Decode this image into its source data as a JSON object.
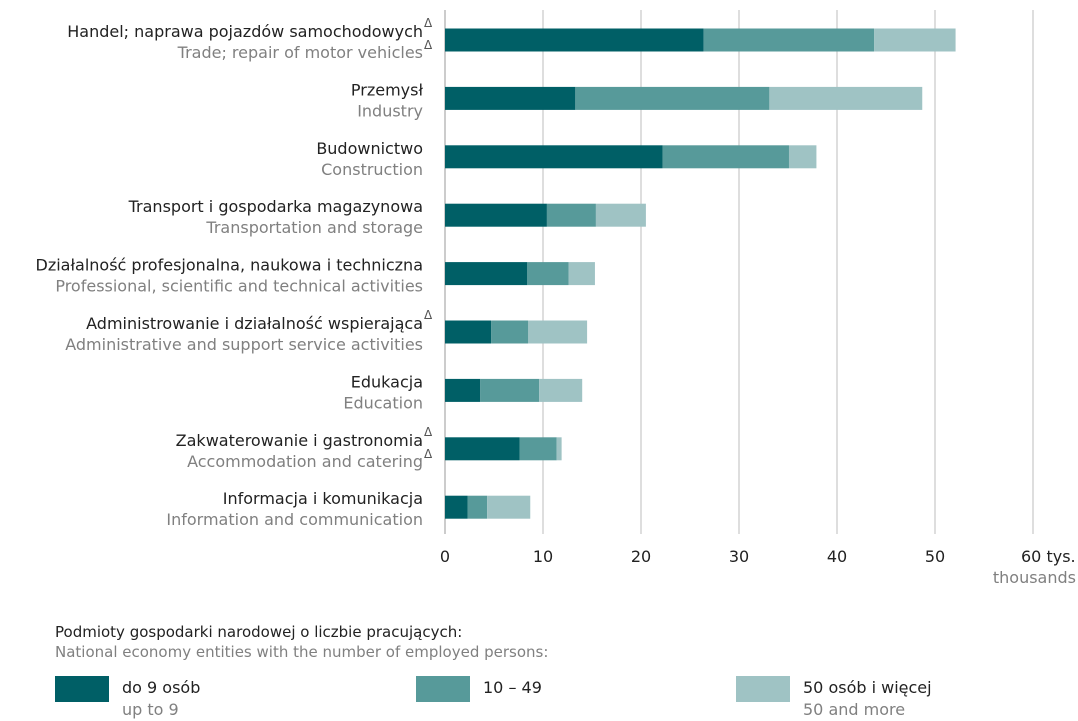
{
  "chart_data": {
    "type": "bar",
    "orientation": "horizontal",
    "stacked": true,
    "categories": [
      {
        "pl": "Handel; naprawa pojazdów samochodowych",
        "en": "Trade; repair of motor vehicles",
        "delta_pl": "Δ",
        "delta_en": "Δ"
      },
      {
        "pl": "Przemysł",
        "en": "Industry"
      },
      {
        "pl": "Budownictwo",
        "en": "Construction"
      },
      {
        "pl": "Transport i gospodarka magazynowa",
        "en": "Transportation and storage"
      },
      {
        "pl": "Działalność profesjonalna, naukowa i techniczna",
        "en": "Professional, scientific and technical activities"
      },
      {
        "pl": "Administrowanie i działalność wspierająca",
        "en": "Administrative and support service activities",
        "delta_pl": "Δ"
      },
      {
        "pl": "Edukacja",
        "en": "Education"
      },
      {
        "pl": "Zakwaterowanie i gastronomia",
        "en": "Accommodation and catering",
        "delta_pl": "Δ",
        "delta_en": "Δ"
      },
      {
        "pl": "Informacja i komunikacja",
        "en": "Information and communication"
      }
    ],
    "series": [
      {
        "name": "do 9 osób",
        "name_en": "up to 9",
        "color": "#005f66",
        "values": [
          26.4,
          13.3,
          22.2,
          10.4,
          8.4,
          4.7,
          3.6,
          7.6,
          2.3
        ]
      },
      {
        "name": "10 – 49",
        "name_en": "",
        "color": "#579a9a",
        "values": [
          17.4,
          19.8,
          12.9,
          5.0,
          4.2,
          3.8,
          6.0,
          3.8,
          2.0
        ]
      },
      {
        "name": "50 osób i więcej",
        "name_en": "50 and more",
        "color": "#9fc3c4",
        "values": [
          8.3,
          15.6,
          2.8,
          5.1,
          2.7,
          6.0,
          4.4,
          0.5,
          4.4
        ]
      }
    ],
    "xlim": [
      0,
      60
    ],
    "xticks": [
      "0",
      "10",
      "20",
      "30",
      "40",
      "50",
      "60 tys."
    ],
    "xunit_en": "thousands",
    "grid": true,
    "legend": {
      "position": "bottom",
      "title_pl": "Podmioty gospodarki narodowej o liczbie pracujących:",
      "title_en": "National economy entities with the number of employed persons:"
    }
  }
}
